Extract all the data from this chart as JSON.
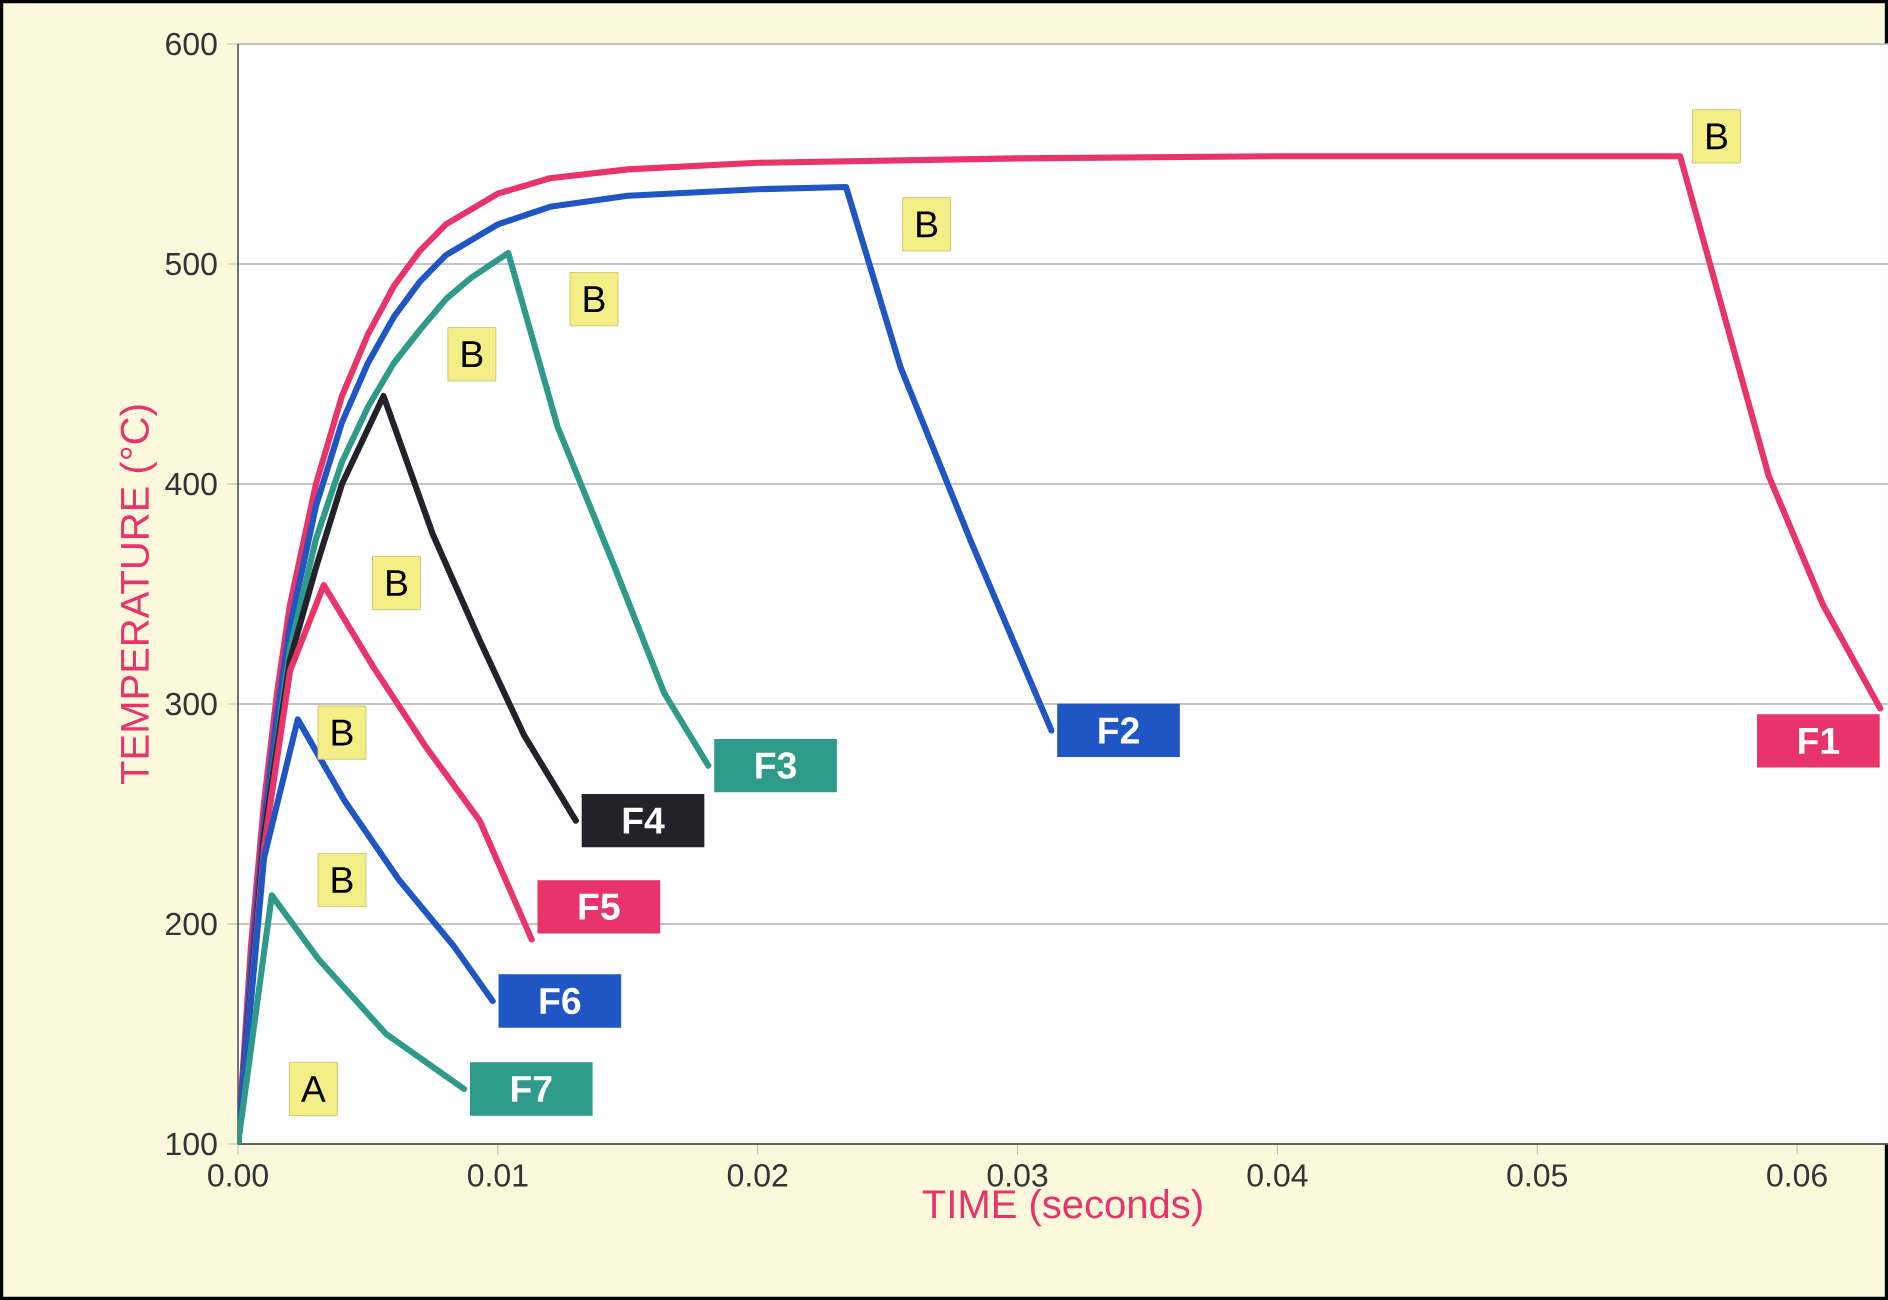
{
  "chart_data": {
    "type": "line",
    "xlabel": "TIME (seconds)",
    "ylabel": "TEMPERATURE (°C)",
    "xlim": [
      0,
      0.0635
    ],
    "ylim": [
      100,
      600
    ],
    "xticks": [
      {
        "value": 0,
        "label": "0.00"
      },
      {
        "value": 0.01,
        "label": "0.01"
      },
      {
        "value": 0.02,
        "label": "0.02"
      },
      {
        "value": 0.03,
        "label": "0.03"
      },
      {
        "value": 0.04,
        "label": "0.04"
      },
      {
        "value": 0.05,
        "label": "0.05"
      },
      {
        "value": 0.06,
        "label": "0.06"
      }
    ],
    "yticks": [
      100,
      200,
      300,
      400,
      500,
      600
    ],
    "grid": "y",
    "legend": false,
    "series": [
      {
        "name": "F1",
        "color": "#e8336b",
        "x": [
          0,
          0.0005,
          0.001,
          0.0015,
          0.002,
          0.003,
          0.004,
          0.005,
          0.006,
          0.007,
          0.008,
          0.01,
          0.012,
          0.015,
          0.02,
          0.03,
          0.04,
          0.0555,
          0.057,
          0.0589,
          0.061,
          0.0632
        ],
        "values": [
          100,
          190,
          255,
          305,
          345,
          400,
          440,
          468,
          490,
          506,
          518,
          532,
          539,
          543,
          546,
          548,
          549,
          549,
          485,
          404,
          345,
          298
        ]
      },
      {
        "name": "F2",
        "color": "#1f56c4",
        "x": [
          0,
          0.0005,
          0.001,
          0.0015,
          0.002,
          0.003,
          0.004,
          0.005,
          0.006,
          0.007,
          0.008,
          0.01,
          0.012,
          0.015,
          0.02,
          0.0234,
          0.0255,
          0.0282,
          0.0313
        ],
        "values": [
          100,
          180,
          245,
          295,
          335,
          390,
          428,
          455,
          476,
          492,
          504,
          518,
          526,
          531,
          534,
          535,
          453,
          374,
          288
        ]
      },
      {
        "name": "F3",
        "color": "#2e9a8a",
        "x": [
          0,
          0.001,
          0.002,
          0.003,
          0.004,
          0.005,
          0.006,
          0.007,
          0.008,
          0.009,
          0.0104,
          0.0123,
          0.0144,
          0.0164,
          0.0181
        ],
        "values": [
          100,
          240,
          325,
          375,
          410,
          435,
          455,
          470,
          484,
          494,
          505,
          426,
          365,
          305,
          272
        ]
      },
      {
        "name": "F4",
        "color": "#222228",
        "x": [
          0,
          0.001,
          0.002,
          0.003,
          0.004,
          0.0056,
          0.0075,
          0.0093,
          0.011,
          0.013
        ],
        "values": [
          100,
          240,
          320,
          362,
          400,
          440,
          377,
          329,
          286,
          247
        ]
      },
      {
        "name": "F5",
        "color": "#e8336b",
        "x": [
          0,
          0.001,
          0.002,
          0.0033,
          0.0052,
          0.0072,
          0.0093,
          0.0113
        ],
        "values": [
          100,
          235,
          315,
          354,
          317,
          281,
          247,
          193
        ]
      },
      {
        "name": "F6",
        "color": "#1f56c4",
        "x": [
          0,
          0.001,
          0.0023,
          0.0041,
          0.0062,
          0.0083,
          0.0098
        ],
        "values": [
          100,
          230,
          293,
          256,
          220,
          190,
          165
        ]
      },
      {
        "name": "F7",
        "color": "#2e9a8a",
        "x": [
          0,
          0.0013,
          0.0031,
          0.0057,
          0.0087
        ],
        "values": [
          100,
          213,
          184,
          150,
          125
        ]
      }
    ],
    "annotations": [
      {
        "text": "A",
        "x": 0.0029,
        "y": 125
      },
      {
        "text": "B",
        "x": 0.004,
        "y": 220
      },
      {
        "text": "B",
        "x": 0.004,
        "y": 287
      },
      {
        "text": "B",
        "x": 0.0061,
        "y": 355
      },
      {
        "text": "B",
        "x": 0.009,
        "y": 459
      },
      {
        "text": "B",
        "x": 0.0137,
        "y": 484
      },
      {
        "text": "B",
        "x": 0.0265,
        "y": 518
      },
      {
        "text": "B",
        "x": 0.0569,
        "y": 558
      }
    ]
  }
}
